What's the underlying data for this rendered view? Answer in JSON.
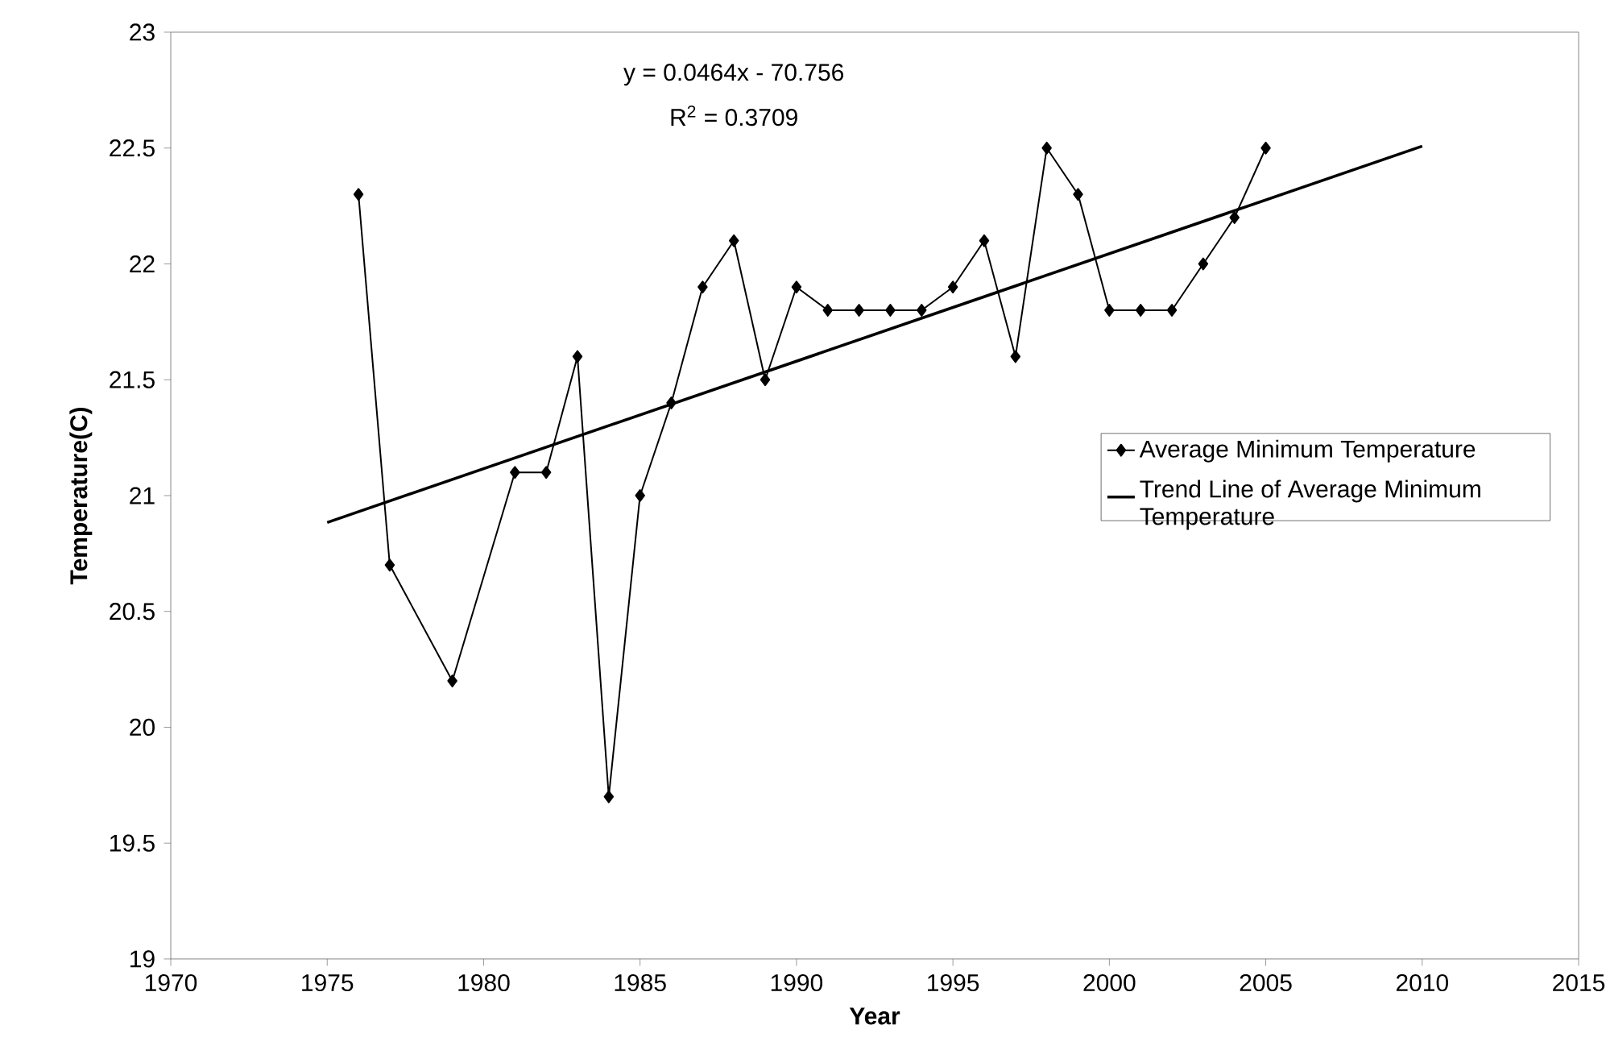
{
  "chart_data": {
    "type": "line",
    "xlabel": "Year",
    "ylabel": "Temperature(C)",
    "annotations": [
      "y = 0.0464x - 70.756",
      "R$^{2}$ = 0.3709"
    ],
    "xlim": [
      1970,
      2015
    ],
    "xticks": [
      1970,
      1975,
      1980,
      1985,
      1990,
      1995,
      2000,
      2005,
      2010,
      2015
    ],
    "ylim": [
      19,
      23
    ],
    "yticks": [
      19,
      19.5,
      20,
      20.5,
      21,
      21.5,
      22,
      22.5,
      23
    ],
    "grid": false,
    "legend": "right",
    "series": [
      {
        "name": "Average Minimum Temperature",
        "color": "#000000",
        "marker": "diamond",
        "x": [
          1976,
          1977,
          1979,
          1981,
          1982,
          1983,
          1984,
          1985,
          1986,
          1987,
          1988,
          1989,
          1990,
          1991,
          1992,
          1993,
          1994,
          1995,
          1996,
          1997,
          1998,
          1999,
          2000,
          2001,
          2002,
          2003,
          2004,
          2005
        ],
        "values": [
          22.3,
          20.7,
          20.2,
          21.1,
          21.1,
          21.6,
          19.7,
          21.0,
          21.4,
          21.9,
          22.1,
          21.5,
          21.9,
          21.8,
          21.8,
          21.8,
          21.8,
          21.9,
          22.1,
          21.6,
          22.5,
          22.3,
          21.8,
          21.8,
          21.8,
          22.0,
          22.2,
          22.5
        ]
      },
      {
        "name": "Trend Line of Average Minimum Temperature",
        "color": "#000000",
        "marker": "none",
        "x": [
          1975,
          2010
        ],
        "values": [
          20.884,
          22.508
        ]
      }
    ]
  }
}
